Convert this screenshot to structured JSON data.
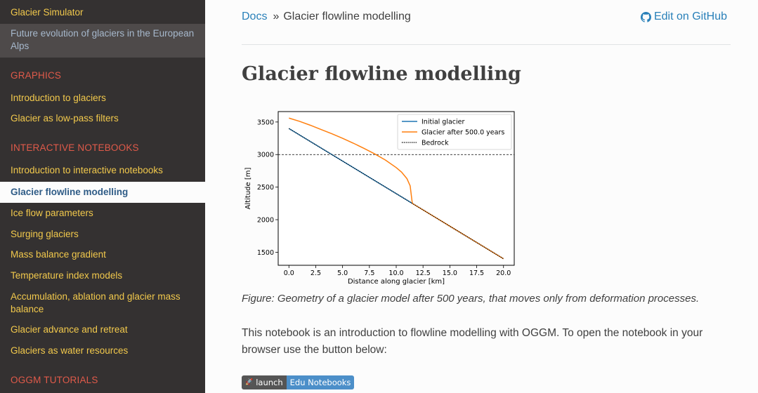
{
  "sidebar": {
    "items": [
      {
        "label": "Glacier Simulator",
        "top": 0
      },
      {
        "label": "Future evolution of glaciers in the European Alps"
      }
    ],
    "captions": [
      "GRAPHICS",
      "INTERACTIVE NOTEBOOKS",
      "OGGM TUTORIALS"
    ],
    "graphics": [
      "Introduction to glaciers",
      "Glacier as low-pass filters"
    ],
    "notebooks": [
      "Introduction to interactive notebooks",
      "Glacier flowline modelling",
      "Ice flow parameters",
      "Surging glaciers",
      "Mass balance gradient",
      "Temperature index models",
      "Accumulation, ablation and glacier mass balance",
      "Glacier advance and retreat",
      "Glaciers as water resources"
    ]
  },
  "breadcrumb": {
    "home": "Docs",
    "sep": "»",
    "current": "Glacier flowline modelling"
  },
  "edit_link": "Edit on GitHub",
  "page_title": "Glacier flowline modelling",
  "caption": "Figure: Geometry of a glacier model after 500 years, that moves only from deformation processes.",
  "paragraph": "This notebook is an introduction to flowline modelling with OGGM. To open the notebook in your browser use the button below:",
  "badge": {
    "left": "launch",
    "right": "Edu Notebooks"
  },
  "colors": {
    "initial": "#1f77b4",
    "after": "#ff7f0e",
    "bedrock": "#000000"
  },
  "chart_data": {
    "type": "line",
    "xlabel": "Distance along glacier [km]",
    "ylabel": "Altitude [m]",
    "xlim": [
      -1,
      21
    ],
    "ylim": [
      1300,
      3660
    ],
    "xticks": [
      0.0,
      2.5,
      5.0,
      7.5,
      10.0,
      12.5,
      15.0,
      17.5,
      20.0
    ],
    "xtick_labels": [
      "0.0",
      "2.5",
      "5.0",
      "7.5",
      "10.0",
      "12.5",
      "15.0",
      "17.5",
      "20.0"
    ],
    "yticks": [
      1500,
      2000,
      2500,
      3000,
      3500
    ],
    "hline": 3000,
    "legend": "upper-right",
    "series": [
      {
        "name": "Initial glacier",
        "style": "solid",
        "x": [
          0,
          20
        ],
        "y": [
          3400,
          1400
        ]
      },
      {
        "name": "Glacier after 500.0 years",
        "style": "solid",
        "x": [
          0,
          1,
          2,
          3,
          4,
          5,
          6,
          7,
          8,
          9,
          10,
          10.5,
          11,
          11.3,
          11.5,
          12,
          14,
          16,
          18,
          20
        ],
        "y": [
          3560,
          3510,
          3450,
          3385,
          3320,
          3250,
          3175,
          3095,
          3010,
          2915,
          2800,
          2730,
          2630,
          2520,
          2250,
          2200,
          2000,
          1800,
          1600,
          1400
        ]
      },
      {
        "name": "Bedrock",
        "style": "dotted",
        "x": [
          0,
          20
        ],
        "y": [
          3400,
          1400
        ]
      }
    ]
  }
}
